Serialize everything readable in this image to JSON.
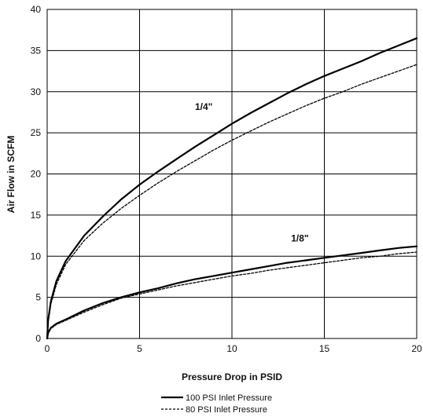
{
  "chart_data": {
    "type": "line",
    "title": "",
    "xlabel": "Pressure Drop in PSID",
    "ylabel": "Air Flow in SCFM",
    "xlim": [
      0,
      20
    ],
    "ylim": [
      0,
      40
    ],
    "x_ticks": [
      0,
      5,
      10,
      15,
      20
    ],
    "y_ticks": [
      0,
      5,
      10,
      15,
      20,
      25,
      30,
      35,
      40
    ],
    "grid": true,
    "legend_placement": "bottom",
    "legend": [
      "100 PSI Inlet Pressure",
      "80 PSI Inlet Pressure"
    ],
    "annotations": [
      {
        "text": "1/4\"",
        "x": 8.0,
        "y": 27.8
      },
      {
        "text": "1/8\"",
        "x": 13.2,
        "y": 11.8
      }
    ],
    "series": [
      {
        "group": "1/4\"",
        "inlet": "100 PSI Inlet Pressure",
        "style": "solid",
        "x": [
          0,
          0.05,
          0.2,
          0.5,
          1,
          2,
          3,
          4,
          5,
          6,
          7,
          8,
          9,
          10,
          11,
          12,
          13,
          14,
          15,
          16,
          17,
          18,
          19,
          20
        ],
        "y": [
          0,
          2.2,
          4.5,
          7.0,
          9.4,
          12.5,
          14.8,
          16.9,
          18.7,
          20.3,
          21.8,
          23.3,
          24.7,
          26.1,
          27.4,
          28.6,
          29.8,
          30.9,
          31.9,
          32.8,
          33.7,
          34.7,
          35.6,
          36.5
        ]
      },
      {
        "group": "1/4\"",
        "inlet": "80 PSI Inlet Pressure",
        "style": "dashed",
        "x": [
          0,
          0.05,
          0.2,
          0.5,
          1,
          2,
          3,
          4,
          5,
          6,
          7,
          8,
          9,
          10,
          11,
          12,
          13,
          14,
          15,
          16,
          17,
          18,
          19,
          20
        ],
        "y": [
          0,
          2.0,
          4.2,
          6.6,
          9.0,
          11.9,
          14.0,
          15.8,
          17.4,
          18.9,
          20.3,
          21.6,
          22.9,
          24.1,
          25.2,
          26.3,
          27.3,
          28.3,
          29.2,
          30.0,
          30.9,
          31.7,
          32.5,
          33.3
        ]
      },
      {
        "group": "1/8\"",
        "inlet": "100 PSI Inlet Pressure",
        "style": "solid",
        "x": [
          0,
          0.05,
          0.2,
          0.5,
          1,
          2,
          3,
          4,
          5,
          6,
          7,
          8,
          9,
          10,
          11,
          12,
          13,
          14,
          15,
          16,
          17,
          18,
          19,
          20
        ],
        "y": [
          0,
          0.7,
          1.3,
          1.8,
          2.3,
          3.4,
          4.3,
          5.0,
          5.6,
          6.1,
          6.7,
          7.2,
          7.6,
          8.0,
          8.4,
          8.8,
          9.2,
          9.5,
          9.8,
          10.1,
          10.4,
          10.7,
          11.0,
          11.2
        ]
      },
      {
        "group": "1/8\"",
        "inlet": "80 PSI Inlet Pressure",
        "style": "dashed",
        "x": [
          0,
          0.05,
          0.2,
          0.5,
          1,
          2,
          3,
          4,
          5,
          6,
          7,
          8,
          9,
          10,
          11,
          12,
          13,
          14,
          15,
          16,
          17,
          18,
          19,
          20
        ],
        "y": [
          0,
          0.6,
          1.2,
          1.7,
          2.2,
          3.2,
          4.1,
          4.9,
          5.4,
          5.9,
          6.4,
          6.8,
          7.2,
          7.6,
          7.9,
          8.3,
          8.6,
          8.9,
          9.2,
          9.5,
          9.8,
          10.0,
          10.3,
          10.5
        ]
      }
    ]
  }
}
